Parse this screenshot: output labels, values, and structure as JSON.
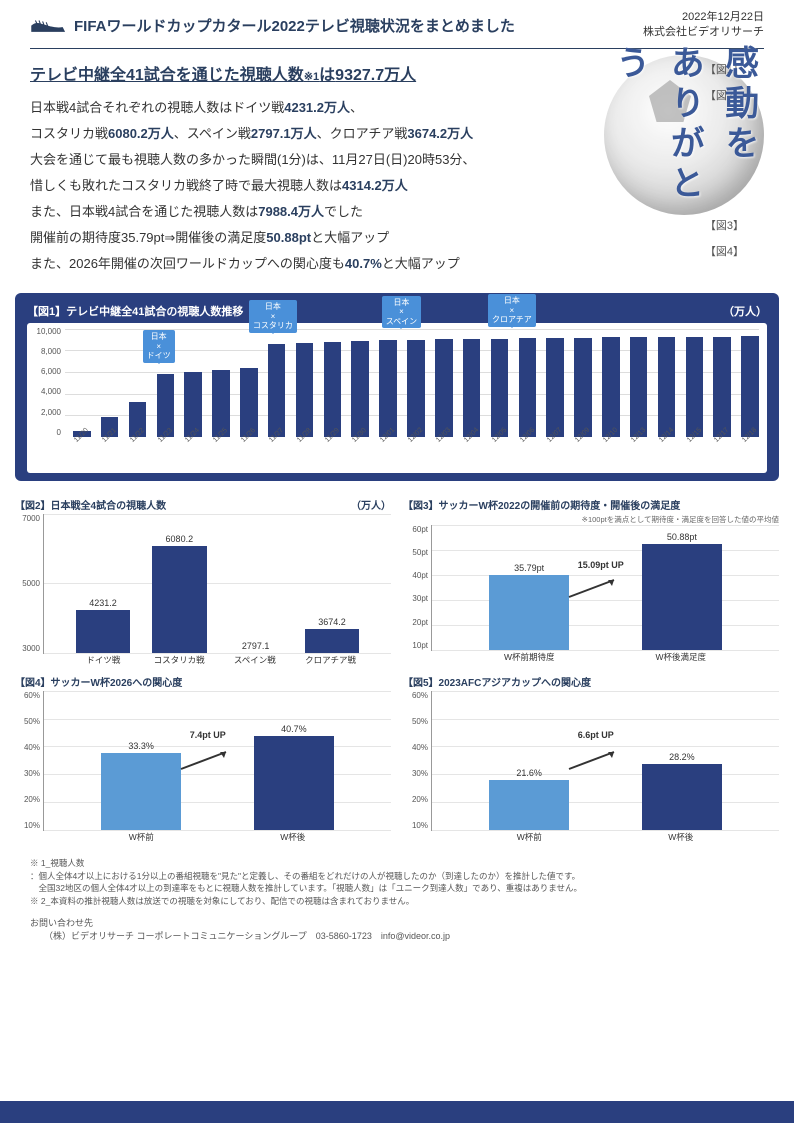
{
  "header": {
    "date": "2022年12月22日",
    "company": "株式会社ビデオリサーチ",
    "title": "FIFAワールドカップカタール2022テレビ視聴状況をまとめました"
  },
  "ball_text": "感動を\nありがとう",
  "refs": {
    "r1": "【図1】",
    "r2": "【図2】",
    "r3": "【図3】",
    "r4": "【図4】"
  },
  "summary": {
    "headline_pre": "テレビ中継全41試合を通じた視聴人数",
    "headline_note": "※1",
    "headline_post": "は",
    "headline_val": "9327.7万人",
    "l1a": "日本戦4試合それぞれの視聴人数はドイツ戦",
    "l1v": "4231.2万人",
    "l1b": "、",
    "l2a": "コスタリカ戦",
    "l2v1": "6080.2万人",
    "l2b": "、スペイン戦",
    "l2v2": "2797.1万人",
    "l2c": "、クロアチア戦",
    "l2v3": "3674.2万人",
    "l3": "大会を通じて最も視聴人数の多かった瞬間(1分)は、11月27日(日)20時53分、",
    "l4a": "惜しくも敗れたコスタリカ戦終了時で最大視聴人数は",
    "l4v": "4314.2万人",
    "l5a": "また、日本戦4試合を通じた視聴人数は",
    "l5v": "7988.4万人",
    "l5b": "でした",
    "l6a": "開催前の期待度35.79pt⇒開催後の満足度",
    "l6v": "50.88pt",
    "l6b": "と大幅アップ",
    "l7a": "また、2026年開催の次回ワールドカップへの関心度も",
    "l7v": "40.7%",
    "l7b": "と大幅アップ"
  },
  "fig1": {
    "title": "【図1】テレビ中継全41試合の視聴人数推移",
    "unit": "（万人）",
    "ymax": 10000,
    "yticks": [
      "10,000",
      "8,000",
      "6,000",
      "4,000",
      "2,000",
      "0"
    ],
    "dates": [
      "11/20",
      "11/21",
      "11/22",
      "11/23",
      "11/24",
      "11/25",
      "11/26",
      "11/27",
      "11/28",
      "11/29",
      "11/30",
      "12/01",
      "12/02",
      "12/03",
      "12/04",
      "12/05",
      "12/06",
      "12/07",
      "12/09",
      "12/10",
      "12/13",
      "12/14",
      "12/15",
      "12/17",
      "12/18"
    ],
    "values": [
      500,
      1800,
      3200,
      5800,
      6000,
      6200,
      6400,
      8600,
      8700,
      8800,
      8900,
      9000,
      9000,
      9050,
      9100,
      9100,
      9150,
      9150,
      9180,
      9200,
      9220,
      9240,
      9260,
      9280,
      9300
    ],
    "bar_color": "#2a3f7f",
    "callouts": [
      {
        "label": "日本\n×\nドイツ",
        "idx": 3
      },
      {
        "label": "日本\n×\nコスタリカ",
        "idx": 7
      },
      {
        "label": "日本\n×\nスペイン",
        "idx": 12
      },
      {
        "label": "日本\n×\nクロアチア",
        "idx": 16
      }
    ]
  },
  "fig2": {
    "title": "【図2】日本戦全4試合の視聴人数",
    "unit": "（万人）",
    "ymin": 3000,
    "ymax": 7000,
    "yticks": [
      "7000",
      "5000",
      "3000"
    ],
    "labels": [
      "ドイツ戦",
      "コスタリカ戦",
      "スペイン戦",
      "クロアチア戦"
    ],
    "values": [
      4231.2,
      6080.2,
      2797.1,
      3674.2
    ],
    "colors": [
      "#2a3f7f",
      "#2a3f7f",
      "#2a3f7f",
      "#2a3f7f"
    ]
  },
  "fig3": {
    "title": "【図3】サッカーW杯2022の開催前の期待度・開催後の満足度",
    "subtitle": "※100ptを満点として期待度・満足度を回答した値の平均値",
    "ymax": 60,
    "yticks": [
      "60pt",
      "50pt",
      "40pt",
      "30pt",
      "20pt",
      "10pt"
    ],
    "labels": [
      "W杯前期待度",
      "W杯後満足度"
    ],
    "values": [
      35.79,
      50.88
    ],
    "value_labels": [
      "35.79pt",
      "50.88pt"
    ],
    "colors": [
      "#5b9bd5",
      "#2a3f7f"
    ],
    "up": "15.09pt UP"
  },
  "fig4": {
    "title": "【図4】サッカーW杯2026への関心度",
    "ymax": 60,
    "yticks": [
      "60%",
      "50%",
      "40%",
      "30%",
      "20%",
      "10%"
    ],
    "labels": [
      "W杯前",
      "W杯後"
    ],
    "values": [
      33.3,
      40.7
    ],
    "value_labels": [
      "33.3%",
      "40.7%"
    ],
    "colors": [
      "#5b9bd5",
      "#2a3f7f"
    ],
    "up": "7.4pt UP"
  },
  "fig5": {
    "title": "【図5】2023AFCアジアカップへの関心度",
    "ymax": 60,
    "yticks": [
      "60%",
      "50%",
      "40%",
      "30%",
      "20%",
      "10%"
    ],
    "labels": [
      "W杯前",
      "W杯後"
    ],
    "values": [
      21.6,
      28.2
    ],
    "value_labels": [
      "21.6%",
      "28.2%"
    ],
    "colors": [
      "#5b9bd5",
      "#2a3f7f"
    ],
    "up": "6.6pt UP"
  },
  "footnotes": {
    "h": "※ 1_視聴人数",
    "f1": "：個人全体4才以上における1分以上の番組視聴を\"見た\"と定義し、その番組をどれだけの人が視聴したのか（到達したのか）を推計した値です。",
    "f2": "　全国32地区の個人全体4才以上の到達率をもとに視聴人数を推計しています。「視聴人数」は「ユニーク到達人数」であり、重複はありません。",
    "f3": "※ 2_本資料の推計視聴人数は放送での視聴を対象にしており、配信での視聴は含まれておりません。"
  },
  "contact": {
    "h": "お問い合わせ先",
    "line": "（株）ビデオリサーチ コーポレートコミュニケーショングループ　03-5860-1723　info@videor.co.jp"
  }
}
